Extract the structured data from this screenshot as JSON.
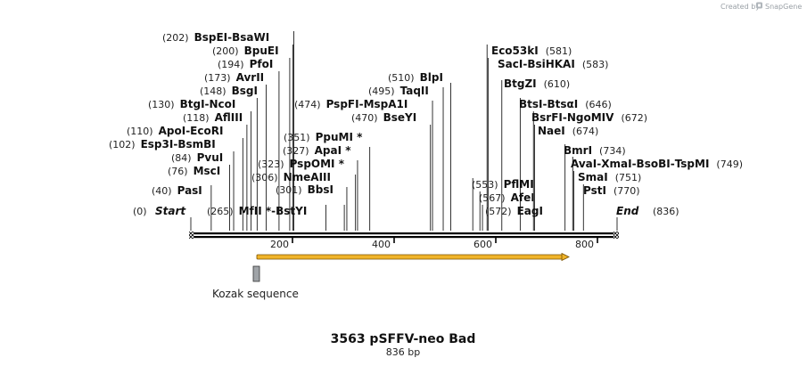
{
  "credit": {
    "text": "Created by",
    "brand": "SnapGene"
  },
  "sequence": {
    "name": "3563 pSFFV-neo Bad",
    "length_label": "836 bp",
    "length": 836
  },
  "axis": {
    "ticks": [
      "200",
      "400",
      "600",
      "800"
    ]
  },
  "ends": [
    {
      "pos": "(0)",
      "name": "Start"
    },
    {
      "pos": "(836)",
      "name": "End"
    }
  ],
  "sites": [
    {
      "num": "(202)",
      "names": [
        "BspEI",
        "BsaWI"
      ]
    },
    {
      "num": "(200)",
      "names": [
        "BpuEI"
      ]
    },
    {
      "num": "(194)",
      "names": [
        "PfoI"
      ]
    },
    {
      "num": "(173)",
      "names": [
        "AvrII"
      ]
    },
    {
      "num": "(148)",
      "names": [
        "BsgI"
      ]
    },
    {
      "num": "(130)",
      "names": [
        "BtgI",
        "NcoI"
      ]
    },
    {
      "num": "(118)",
      "names": [
        "AflIII"
      ]
    },
    {
      "num": "(110)",
      "names": [
        "ApoI",
        "EcoRI"
      ]
    },
    {
      "num": "(102)",
      "names": [
        "Esp3I",
        "BsmBI"
      ]
    },
    {
      "num": "(84)",
      "names": [
        "PvuI"
      ]
    },
    {
      "num": "(76)",
      "names": [
        "MscI"
      ]
    },
    {
      "num": "(40)",
      "names": [
        "PasI"
      ]
    },
    {
      "num": "(265)",
      "names": [
        "MfII *",
        "BstYI"
      ]
    },
    {
      "num": "(301)",
      "names": [
        "BbsI"
      ]
    },
    {
      "num": "(306)",
      "names": [
        "NmeAIII"
      ]
    },
    {
      "num": "(323)",
      "names": [
        "PspOMI *"
      ]
    },
    {
      "num": "(327)",
      "names": [
        "ApaI *"
      ]
    },
    {
      "num": "(351)",
      "names": [
        "PpuMI *"
      ]
    },
    {
      "num": "(474)",
      "names": [
        "PspFI",
        "MspA1I"
      ]
    },
    {
      "num": "(470)",
      "names": [
        "BseYI"
      ]
    },
    {
      "num": "(495)",
      "names": [
        "TaqII"
      ]
    },
    {
      "num": "(510)",
      "names": [
        "BlpI"
      ]
    },
    {
      "num": "(581)",
      "names": [
        "Eco53kI"
      ]
    },
    {
      "num": "(583)",
      "names": [
        "SacI",
        "BsiHKAI"
      ]
    },
    {
      "num": "(610)",
      "names": [
        "BtgZI"
      ]
    },
    {
      "num": "(646)",
      "names": [
        "BtsI",
        "BtsαI"
      ]
    },
    {
      "num": "(672)",
      "names": [
        "BsrFI",
        "NgoMIV"
      ]
    },
    {
      "num": "(674)",
      "names": [
        "NaeI"
      ]
    },
    {
      "num": "(553)",
      "names": [
        "PflMI"
      ]
    },
    {
      "num": "(567)",
      "names": [
        "AfeI"
      ]
    },
    {
      "num": "(572)",
      "names": [
        "EagI"
      ]
    },
    {
      "num": "(734)",
      "names": [
        "BmrI"
      ]
    },
    {
      "num": "(749)",
      "names": [
        "AvaI",
        "XmaI",
        "BsoBI",
        "TspMI"
      ]
    },
    {
      "num": "(751)",
      "names": [
        "SmaI"
      ]
    },
    {
      "num": "(770)",
      "names": [
        "PstI"
      ]
    }
  ],
  "features": [
    {
      "name": "Kozak sequence"
    }
  ],
  "colors": {
    "orf": "#f0b429",
    "orf_edge": "#7a5200",
    "kozak": "#a0a4a8",
    "line": "#000000",
    "credit": "#9aa0a6"
  }
}
